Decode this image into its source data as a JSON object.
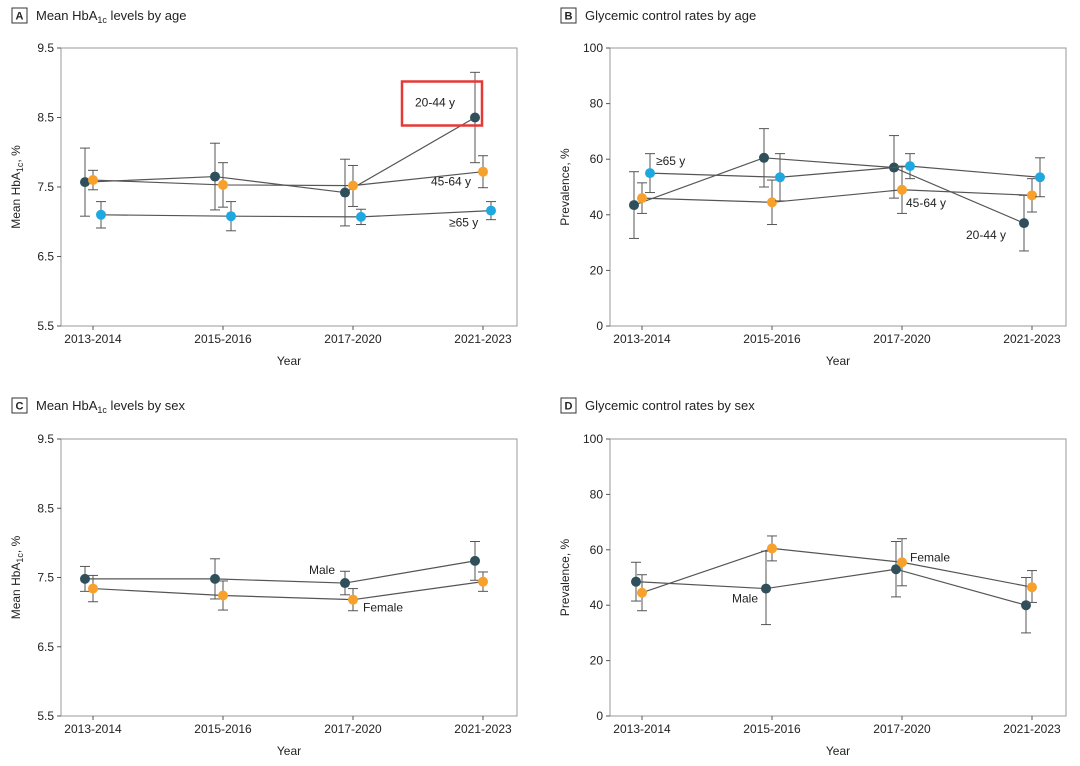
{
  "colors": {
    "series_dark": "#2f4f5a",
    "series_orange": "#f7a02b",
    "series_blue": "#1fa8e0",
    "connector": "#555555",
    "highlight_box": "#e53935"
  },
  "chart_data": [
    {
      "type": "line",
      "panel_letter": "A",
      "title": "Mean HbA1c levels by age",
      "title_parts": {
        "prefix": "Mean HbA",
        "sub": "1c",
        "suffix": " levels by age"
      },
      "xlabel": "Year",
      "ylabel": "Mean HbA1c, %",
      "ylabel_parts": {
        "prefix": "Mean HbA",
        "sub": "1c",
        "suffix": ", %"
      },
      "categories": [
        "2013-2014",
        "2015-2016",
        "2017-2020",
        "2021-2023"
      ],
      "ylim": [
        5.5,
        9.5
      ],
      "yticks": [
        "5.5",
        "6.5",
        "7.5",
        "8.5",
        "9.5"
      ],
      "grid": false,
      "series": [
        {
          "name": "20-44 y",
          "color": "series_dark",
          "offset": -1,
          "values": [
            7.57,
            7.65,
            7.42,
            8.5
          ],
          "lower": [
            7.08,
            7.17,
            6.94,
            7.85
          ],
          "upper": [
            8.06,
            8.13,
            7.9,
            9.15
          ]
        },
        {
          "name": "45-64 y",
          "color": "series_orange",
          "offset": 0,
          "values": [
            7.6,
            7.53,
            7.52,
            7.72
          ],
          "lower": [
            7.46,
            7.21,
            7.22,
            7.49
          ],
          "upper": [
            7.74,
            7.85,
            7.81,
            7.95
          ]
        },
        {
          "name": "≥65 y",
          "color": "series_blue",
          "offset": 1,
          "values": [
            7.1,
            7.08,
            7.07,
            7.16
          ],
          "lower": [
            6.91,
            6.87,
            6.96,
            7.03
          ],
          "upper": [
            7.29,
            7.29,
            7.18,
            7.29
          ]
        }
      ],
      "annotations": [
        {
          "text": "20-44 y",
          "series": 0,
          "cat": 3,
          "dx": -60,
          "dy": -11,
          "boxed": true
        },
        {
          "text": "45-64 y",
          "series": 1,
          "cat": 3,
          "dx": -52,
          "dy": 14,
          "boxed": false
        },
        {
          "text": "≥65 y",
          "series": 2,
          "cat": 3,
          "dx": -42,
          "dy": 16,
          "boxed": false
        }
      ]
    },
    {
      "type": "line",
      "panel_letter": "B",
      "title": "Glycemic control rates by age",
      "xlabel": "Year",
      "ylabel": "Prevalence, %",
      "categories": [
        "2013-2014",
        "2015-2016",
        "2017-2020",
        "2021-2023"
      ],
      "ylim": [
        0,
        100
      ],
      "yticks": [
        "0",
        "20",
        "40",
        "60",
        "80",
        "100"
      ],
      "grid": false,
      "series": [
        {
          "name": "20-44 y",
          "color": "series_dark",
          "offset": -1,
          "values": [
            43.5,
            60.5,
            57.0,
            37.0
          ],
          "lower": [
            31.5,
            50.0,
            46.0,
            27.0
          ],
          "upper": [
            55.5,
            71.0,
            68.5,
            47.0
          ]
        },
        {
          "name": "45-64 y",
          "color": "series_orange",
          "offset": 0,
          "values": [
            46.0,
            44.5,
            49.0,
            47.0
          ],
          "lower": [
            40.5,
            36.5,
            40.5,
            41.0
          ],
          "upper": [
            51.5,
            52.5,
            57.5,
            53.0
          ]
        },
        {
          "name": "≥65 y",
          "color": "series_blue",
          "offset": 1,
          "values": [
            55.0,
            53.5,
            57.5,
            53.5
          ],
          "lower": [
            48.0,
            45.0,
            53.0,
            46.5
          ],
          "upper": [
            62.0,
            62.0,
            62.0,
            60.5
          ]
        }
      ],
      "annotations": [
        {
          "text": "≥65 y",
          "series": 2,
          "cat": 0,
          "dx": 6,
          "dy": -8,
          "boxed": false
        },
        {
          "text": "45-64 y",
          "series": 1,
          "cat": 2,
          "dx": 4,
          "dy": 17,
          "boxed": false
        },
        {
          "text": "20-44 y",
          "series": 0,
          "cat": 3,
          "dx": -58,
          "dy": 16,
          "boxed": false
        }
      ]
    },
    {
      "type": "line",
      "panel_letter": "C",
      "title": "Mean HbA1c levels by sex",
      "title_parts": {
        "prefix": "Mean HbA",
        "sub": "1c",
        "suffix": " levels by sex"
      },
      "xlabel": "Year",
      "ylabel": "Mean HbA1c, %",
      "ylabel_parts": {
        "prefix": "Mean HbA",
        "sub": "1c",
        "suffix": ", %"
      },
      "categories": [
        "2013-2014",
        "2015-2016",
        "2017-2020",
        "2021-2023"
      ],
      "ylim": [
        5.5,
        9.5
      ],
      "yticks": [
        "5.5",
        "6.5",
        "7.5",
        "8.5",
        "9.5"
      ],
      "grid": false,
      "series": [
        {
          "name": "Male",
          "color": "series_dark",
          "offset": -1,
          "values": [
            7.48,
            7.48,
            7.42,
            7.74
          ],
          "lower": [
            7.3,
            7.19,
            7.25,
            7.46
          ],
          "upper": [
            7.66,
            7.77,
            7.59,
            8.02
          ]
        },
        {
          "name": "Female",
          "color": "series_orange",
          "offset": 0,
          "values": [
            7.34,
            7.24,
            7.18,
            7.44
          ],
          "lower": [
            7.15,
            7.03,
            7.02,
            7.3
          ],
          "upper": [
            7.53,
            7.45,
            7.34,
            7.58
          ]
        }
      ],
      "annotations": [
        {
          "text": "Male",
          "series": 0,
          "cat": 2,
          "dx": -36,
          "dy": -9,
          "boxed": false
        },
        {
          "text": "Female",
          "series": 1,
          "cat": 2,
          "dx": 10,
          "dy": 12,
          "boxed": false
        }
      ]
    },
    {
      "type": "line",
      "panel_letter": "D",
      "title": "Glycemic control rates by sex",
      "xlabel": "Year",
      "ylabel": "Prevalence, %",
      "categories": [
        "2013-2014",
        "2015-2016",
        "2017-2020",
        "2021-2023"
      ],
      "ylim": [
        0,
        100
      ],
      "yticks": [
        "0",
        "20",
        "40",
        "60",
        "80",
        "100"
      ],
      "grid": false,
      "series": [
        {
          "name": "Male",
          "color": "series_dark",
          "offset": -1,
          "values": [
            48.5,
            46.0,
            53.0,
            40.0
          ],
          "lower": [
            41.5,
            33.0,
            43.0,
            30.0
          ],
          "upper": [
            55.5,
            59.5,
            63.0,
            50.0
          ]
        },
        {
          "name": "Female",
          "color": "series_orange",
          "offset": 0,
          "values": [
            44.5,
            60.5,
            55.5,
            46.5
          ],
          "lower": [
            38.0,
            56.0,
            47.0,
            41.0
          ],
          "upper": [
            51.0,
            65.0,
            64.0,
            52.5
          ]
        }
      ],
      "annotations": [
        {
          "text": "Male",
          "series": 0,
          "cat": 1,
          "dx": -34,
          "dy": 14,
          "boxed": false
        },
        {
          "text": "Female",
          "series": 1,
          "cat": 2,
          "dx": 8,
          "dy": -1,
          "boxed": false
        }
      ]
    }
  ]
}
